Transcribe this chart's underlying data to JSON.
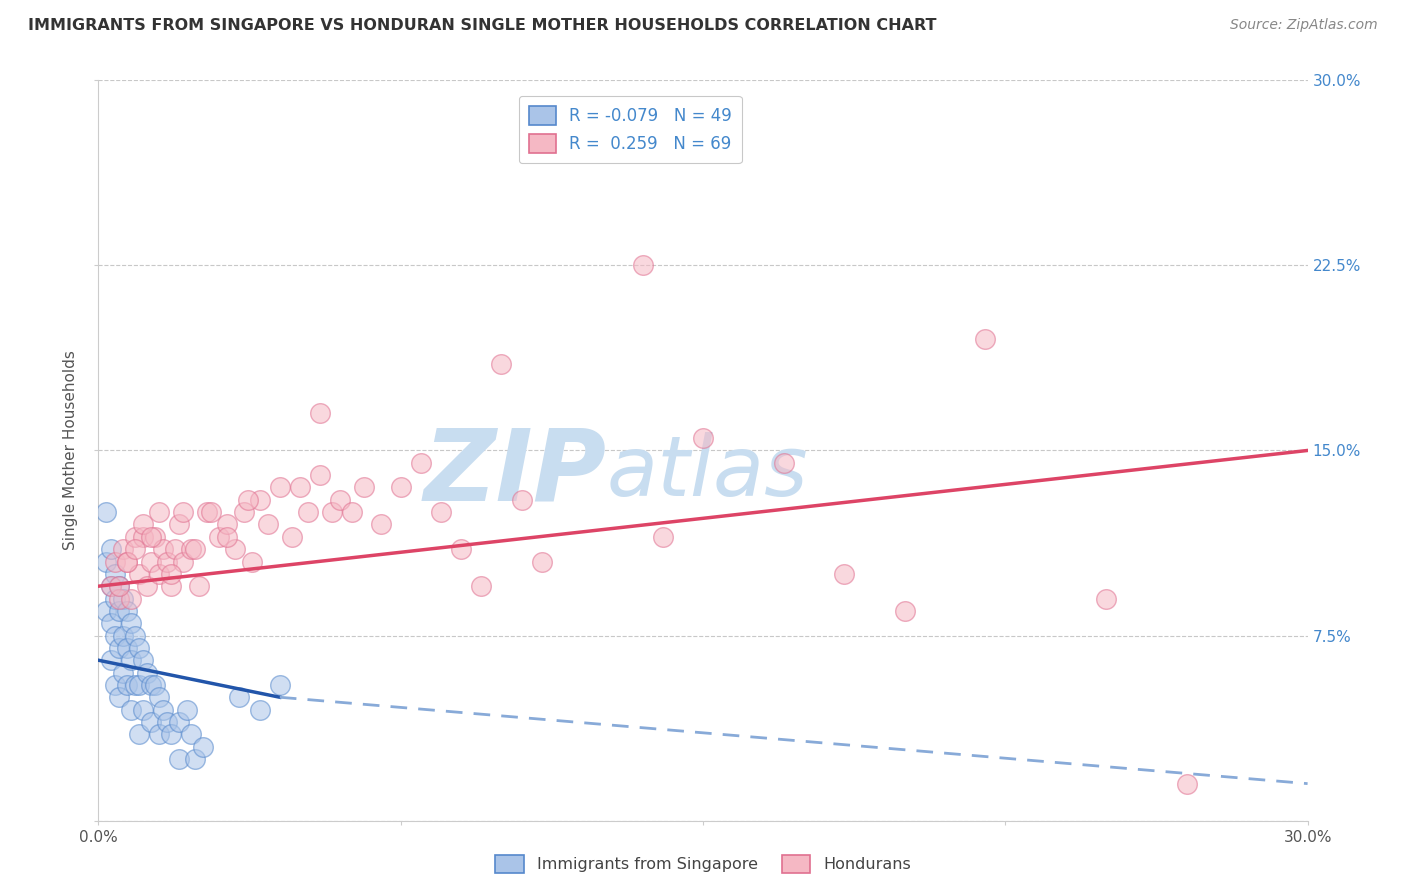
{
  "title": "IMMIGRANTS FROM SINGAPORE VS HONDURAN SINGLE MOTHER HOUSEHOLDS CORRELATION CHART",
  "source": "Source: ZipAtlas.com",
  "ylabel": "Single Mother Households",
  "legend_blue_label": "Immigrants from Singapore",
  "legend_pink_label": "Hondurans",
  "xlim": [
    0.0,
    30.0
  ],
  "ylim": [
    0.0,
    30.0
  ],
  "background_color": "#ffffff",
  "grid_color": "#c8c8c8",
  "title_color": "#333333",
  "blue_scatter_color": "#aac4e8",
  "blue_scatter_edge": "#5588cc",
  "pink_scatter_color": "#f5b8c4",
  "pink_scatter_edge": "#e07090",
  "blue_line_color": "#2255aa",
  "pink_line_color": "#dd4466",
  "blue_dashed_color": "#88aad8",
  "right_axis_color": "#4488cc",
  "blue_points_x": [
    0.2,
    0.2,
    0.2,
    0.3,
    0.3,
    0.3,
    0.3,
    0.4,
    0.4,
    0.4,
    0.4,
    0.5,
    0.5,
    0.5,
    0.5,
    0.6,
    0.6,
    0.6,
    0.7,
    0.7,
    0.7,
    0.8,
    0.8,
    0.8,
    0.9,
    0.9,
    1.0,
    1.0,
    1.0,
    1.1,
    1.1,
    1.2,
    1.3,
    1.3,
    1.4,
    1.5,
    1.5,
    1.6,
    1.7,
    1.8,
    2.0,
    2.0,
    2.2,
    2.3,
    2.4,
    2.6,
    3.5,
    4.0,
    4.5
  ],
  "blue_points_y": [
    12.5,
    10.5,
    8.5,
    11.0,
    9.5,
    8.0,
    6.5,
    10.0,
    9.0,
    7.5,
    5.5,
    9.5,
    8.5,
    7.0,
    5.0,
    9.0,
    7.5,
    6.0,
    8.5,
    7.0,
    5.5,
    8.0,
    6.5,
    4.5,
    7.5,
    5.5,
    7.0,
    5.5,
    3.5,
    6.5,
    4.5,
    6.0,
    5.5,
    4.0,
    5.5,
    5.0,
    3.5,
    4.5,
    4.0,
    3.5,
    4.0,
    2.5,
    4.5,
    3.5,
    2.5,
    3.0,
    5.0,
    4.5,
    5.5
  ],
  "pink_points_x": [
    0.3,
    0.4,
    0.5,
    0.6,
    0.7,
    0.8,
    0.9,
    1.0,
    1.1,
    1.2,
    1.3,
    1.4,
    1.5,
    1.6,
    1.7,
    1.8,
    1.9,
    2.0,
    2.1,
    2.3,
    2.5,
    2.7,
    3.0,
    3.2,
    3.4,
    3.6,
    3.8,
    4.0,
    4.2,
    4.5,
    4.8,
    5.0,
    5.2,
    5.5,
    5.8,
    6.0,
    6.3,
    6.6,
    7.0,
    7.5,
    8.0,
    8.5,
    9.0,
    9.5,
    10.0,
    10.5,
    11.0,
    5.5,
    13.5,
    14.0,
    15.0,
    17.0,
    18.5,
    20.0,
    22.0,
    25.0,
    27.0,
    0.5,
    0.7,
    0.9,
    1.1,
    1.3,
    1.5,
    1.8,
    2.1,
    2.4,
    2.8,
    3.2,
    3.7
  ],
  "pink_points_y": [
    9.5,
    10.5,
    9.0,
    11.0,
    10.5,
    9.0,
    11.5,
    10.0,
    11.5,
    9.5,
    10.5,
    11.5,
    10.0,
    11.0,
    10.5,
    9.5,
    11.0,
    12.0,
    10.5,
    11.0,
    9.5,
    12.5,
    11.5,
    12.0,
    11.0,
    12.5,
    10.5,
    13.0,
    12.0,
    13.5,
    11.5,
    13.5,
    12.5,
    14.0,
    12.5,
    13.0,
    12.5,
    13.5,
    12.0,
    13.5,
    14.5,
    12.5,
    11.0,
    9.5,
    18.5,
    13.0,
    10.5,
    16.5,
    22.5,
    11.5,
    15.5,
    14.5,
    10.0,
    8.5,
    19.5,
    9.0,
    1.5,
    9.5,
    10.5,
    11.0,
    12.0,
    11.5,
    12.5,
    10.0,
    12.5,
    11.0,
    12.5,
    11.5,
    13.0
  ],
  "blue_reg_x0": 0.0,
  "blue_reg_y0": 6.5,
  "blue_reg_x1": 4.5,
  "blue_reg_y1": 5.0,
  "blue_dash_x0": 4.5,
  "blue_dash_y0": 5.0,
  "blue_dash_x1": 30.0,
  "blue_dash_y1": 1.5,
  "pink_reg_x0": 0.0,
  "pink_reg_y0": 9.5,
  "pink_reg_x1": 30.0,
  "pink_reg_y1": 15.0,
  "scatter_size": 200,
  "scatter_alpha": 0.55,
  "watermark_zip": "ZIP",
  "watermark_atlas": "atlas",
  "watermark_color": "#c8ddf0"
}
